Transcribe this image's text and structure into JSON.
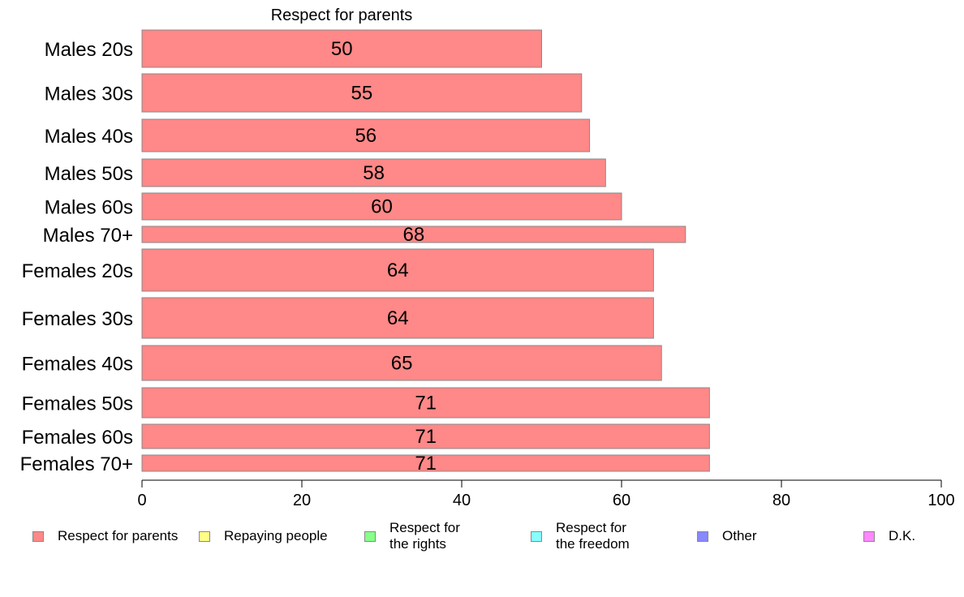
{
  "chart_data": {
    "type": "bar",
    "orientation": "horizontal",
    "title": "Respect for parents",
    "categories": [
      "Males 20s",
      "Males 30s",
      "Males 40s",
      "Males 50s",
      "Males 60s",
      "Males 70+",
      "Females 20s",
      "Females 30s",
      "Females 40s",
      "Females 50s",
      "Females 60s",
      "Females 70+"
    ],
    "values": [
      50,
      55,
      56,
      58,
      60,
      68,
      64,
      64,
      65,
      71,
      71,
      71
    ],
    "value_labels": [
      "50",
      "55",
      "56",
      "58",
      "60",
      "68",
      "64",
      "64",
      "65",
      "71",
      "71",
      "71"
    ],
    "xlim": [
      0,
      100
    ],
    "xticks": [
      0,
      20,
      40,
      60,
      80,
      100
    ],
    "xtick_labels": [
      "0",
      "20",
      "40",
      "60",
      "80",
      "100"
    ],
    "grid": false,
    "bar_color": "#ff8888",
    "legend_position": "bottom",
    "legend": [
      {
        "label": "Respect for parents",
        "color": "#ff8888"
      },
      {
        "label": "Repaying people",
        "color": "#ffff88"
      },
      {
        "label": "Respect for\nthe rights",
        "color": "#88ff88"
      },
      {
        "label": "Respect for\nthe freedom",
        "color": "#88ffff"
      },
      {
        "label": "Other",
        "color": "#8888ff"
      },
      {
        "label": "D.K.",
        "color": "#ff88ff"
      }
    ]
  }
}
